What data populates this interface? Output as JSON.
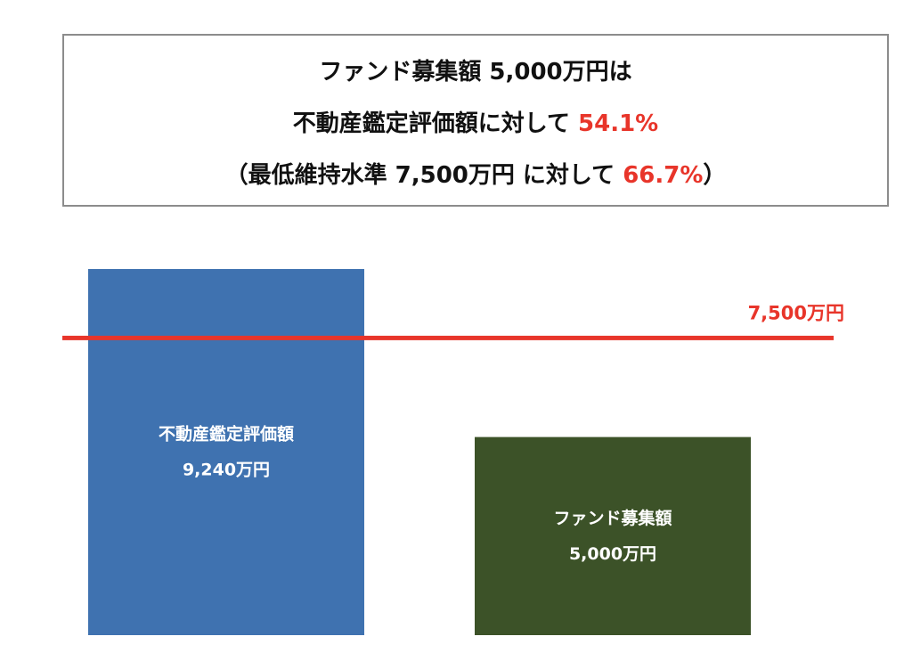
{
  "summary": {
    "line1": "ファンド募集額 5,000万円は",
    "line2_text": "不動産鑑定評価額に対して ",
    "line2_highlight": "54.1%",
    "line3_open": "（最低維持水準 7,500万円 に対して ",
    "line3_highlight": "66.7%",
    "line3_close": "）"
  },
  "colors": {
    "accent": "#e8352a",
    "appraisal_bar": "#3f72b0",
    "fund_bar": "#3c5228",
    "reference_line": "#e8352a"
  },
  "chart_data": {
    "type": "bar",
    "unit": "万円",
    "ylim": [
      0,
      9240
    ],
    "bars": [
      {
        "name": "不動産鑑定評価額",
        "value": 9240,
        "value_label": "9,240万円",
        "color": "#3f72b0"
      },
      {
        "name": "ファンド募集額",
        "value": 5000,
        "value_label": "5,000万円",
        "color": "#3c5228"
      }
    ],
    "reference_line": {
      "value": 7500,
      "label": "7,500万円",
      "color": "#e8352a"
    }
  }
}
